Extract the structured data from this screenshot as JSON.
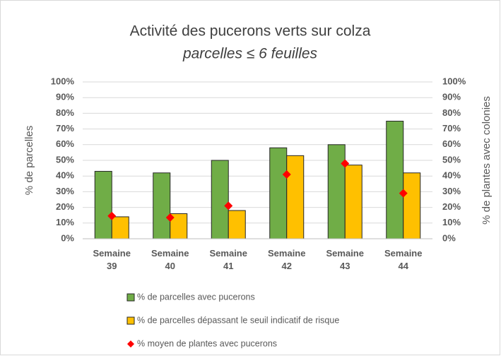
{
  "chart_data": {
    "type": "bar",
    "title": "Activité des pucerons verts sur colza",
    "subtitle": "parcelles ≤ 6 feuilles",
    "y_label": "% de parcelles",
    "y2_label": "% de plantes avec colonies",
    "categories": [
      "Semaine 39",
      "Semaine 40",
      "Semaine 41",
      "Semaine 42",
      "Semaine 43",
      "Semaine 44"
    ],
    "series": [
      {
        "name": "% de parcelles avec pucerons",
        "color": "#70ad47",
        "values": [
          43,
          42,
          50,
          58,
          60,
          75
        ]
      },
      {
        "name": "% de parcelles dépassant le seuil indicatif de risque",
        "color": "#ffc000",
        "values": [
          14,
          16,
          18,
          53,
          47,
          42
        ]
      },
      {
        "name": "% moyen de plantes avec pucerons",
        "color": "#ff0000",
        "type": "scatter",
        "axis": "y2",
        "values": [
          14.5,
          13.5,
          21,
          41,
          48,
          29
        ]
      }
    ],
    "ylim": [
      0,
      100
    ],
    "yticks": [
      {
        "value": 0,
        "label": "0%"
      },
      {
        "value": 10,
        "label": "10%"
      },
      {
        "value": 20,
        "label": "20%"
      },
      {
        "value": 30,
        "label": "30%"
      },
      {
        "value": 40,
        "label": "40%"
      },
      {
        "value": 50,
        "label": "50%"
      },
      {
        "value": 60,
        "label": "60%"
      },
      {
        "value": 70,
        "label": "70%"
      },
      {
        "value": 80,
        "label": "80%"
      },
      {
        "value": 90,
        "label": "90%"
      },
      {
        "value": 100,
        "label": "100%"
      }
    ],
    "y2lim": [
      0,
      100
    ],
    "y2ticks": [
      {
        "value": 0,
        "label": "0%"
      },
      {
        "value": 10,
        "label": "10%"
      },
      {
        "value": 20,
        "label": "20%"
      },
      {
        "value": 30,
        "label": "30%"
      },
      {
        "value": 40,
        "label": "40%"
      },
      {
        "value": 50,
        "label": "50%"
      },
      {
        "value": 60,
        "label": "60%"
      },
      {
        "value": 70,
        "label": "70%"
      },
      {
        "value": 80,
        "label": "80%"
      },
      {
        "value": 90,
        "label": "90%"
      },
      {
        "value": 100,
        "label": "100%"
      }
    ],
    "grid": true,
    "legend": "bottom"
  }
}
